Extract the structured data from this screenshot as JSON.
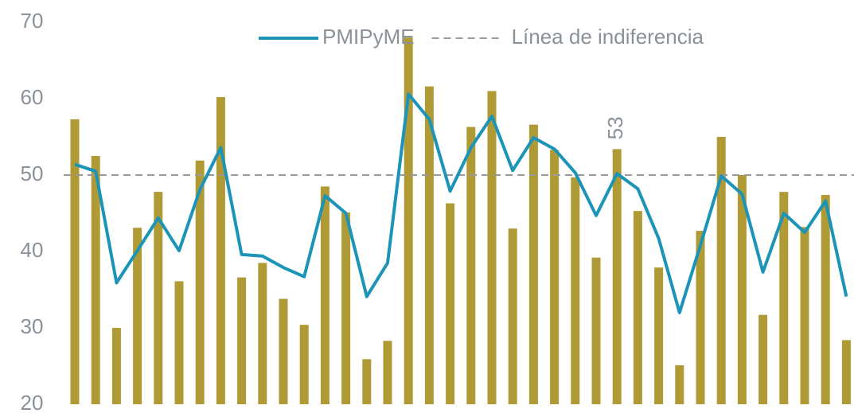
{
  "chart_data": {
    "type": "bar_line",
    "ylim": [
      20,
      70
    ],
    "yticks": [
      20,
      30,
      40,
      50,
      60,
      70
    ],
    "legend": "top",
    "series": [
      {
        "kind": "bar",
        "color": "#b09a35",
        "values": [
          57.3,
          52.5,
          30,
          43.1,
          47.8,
          36.1,
          51.9,
          60.2,
          36.6,
          38.5,
          33.8,
          30.4,
          48.5,
          45.1,
          25.9,
          28.3,
          68,
          61.6,
          46.3,
          56.3,
          61,
          43,
          56.6,
          53.3,
          49.7,
          39.2,
          53.4,
          45.3,
          37.9,
          25.1,
          42.7,
          55,
          50,
          31.7,
          47.8,
          43.2,
          47.4,
          28.4
        ],
        "value_labels": [
          null,
          null,
          null,
          null,
          null,
          null,
          null,
          null,
          null,
          null,
          null,
          null,
          null,
          null,
          null,
          null,
          null,
          null,
          null,
          null,
          null,
          null,
          null,
          null,
          null,
          null,
          "53",
          null,
          null,
          null,
          null,
          null,
          null,
          null,
          null,
          null,
          null,
          null
        ]
      },
      {
        "kind": "line",
        "name": "PMIPyME",
        "color": "#1c94b8",
        "values": [
          51.4,
          50.5,
          35.9,
          40.1,
          44.4,
          40.1,
          48.1,
          53.6,
          39.6,
          39.4,
          37.9,
          36.7,
          47.3,
          45,
          34.1,
          38.5,
          60.6,
          57.3,
          47.9,
          53.6,
          57.7,
          50.6,
          54.9,
          53.4,
          50.3,
          44.7,
          50.2,
          48.2,
          41.7,
          32,
          40.8,
          49.9,
          47.5,
          37.3,
          45,
          42.5,
          46.6,
          34.1
        ]
      }
    ],
    "reference_lines": [
      {
        "name": "Línea de indiferencia",
        "value": 50,
        "color": "#9a9a9a"
      }
    ]
  }
}
